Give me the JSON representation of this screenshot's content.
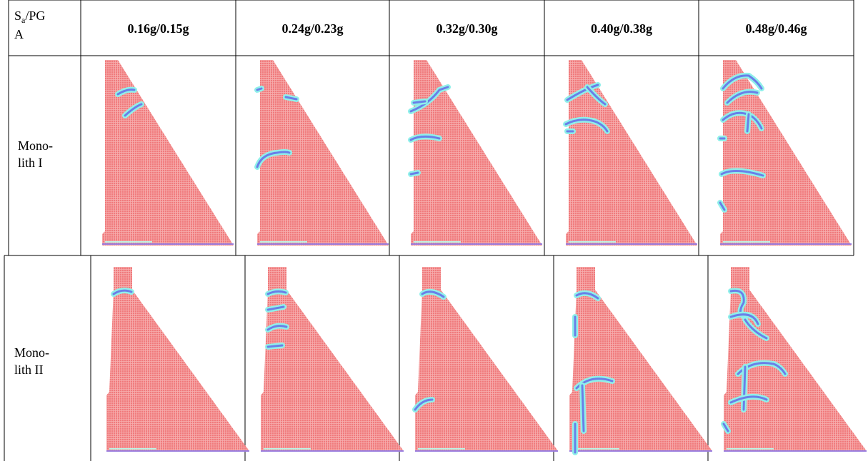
{
  "table": {
    "header": {
      "corner": {
        "base": "S",
        "sub": "a",
        "rest": "/PG",
        "rest2": "A"
      },
      "columns": [
        "0.16g/0.15g",
        "0.24g/0.23g",
        "0.32g/0.30g",
        "0.40g/0.38g",
        "0.48g/0.46g"
      ]
    },
    "rows": [
      {
        "label": [
          "Mono-",
          "lith I"
        ]
      },
      {
        "label": [
          "Mono-",
          "lith II"
        ]
      }
    ]
  }
}
